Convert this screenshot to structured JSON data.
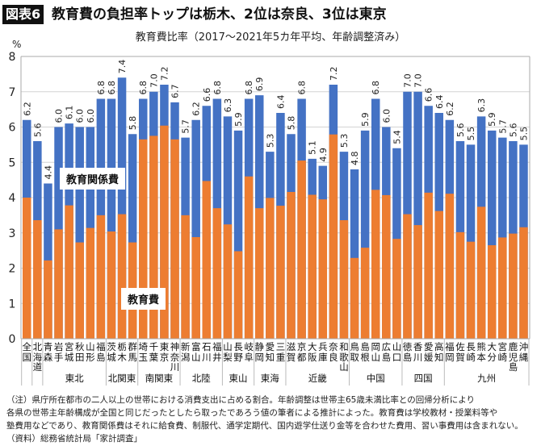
{
  "header": {
    "badge": "図表6",
    "title": "教育費の負担率トップは栃木、2位は奈良、3位は東京",
    "subtitle": "教育費比率（2017～2021年5カ年平均、年齢調整済み）",
    "unit": "%"
  },
  "chart_data": {
    "type": "bar",
    "stacked": "overlay",
    "ylim": [
      0,
      8
    ],
    "yticks": [
      "0",
      "1",
      "2",
      "3",
      "4",
      "5",
      "6",
      "7",
      "8"
    ],
    "ylabel": "%",
    "grid": true,
    "categories": [
      "全国",
      "北海道",
      "青森",
      "岩手",
      "宮城",
      "秋田",
      "山形",
      "福島",
      "茨城",
      "栃木",
      "群馬",
      "埼玉",
      "千葉",
      "東京",
      "神奈川",
      "新潟",
      "富山",
      "石川",
      "福井",
      "山梨",
      "長野",
      "岐阜",
      "静岡",
      "愛知",
      "三重",
      "滋賀",
      "京都",
      "大阪",
      "兵庫",
      "奈良",
      "和歌山",
      "鳥取",
      "島根",
      "岡山",
      "広島",
      "山口",
      "徳島",
      "香川",
      "愛媛",
      "高知",
      "福岡",
      "佐賀",
      "長崎",
      "熊本",
      "大分",
      "宮崎",
      "鹿児島",
      "沖縄"
    ],
    "regions": [
      {
        "label": "",
        "start": 0,
        "count": 1
      },
      {
        "label": "",
        "start": 1,
        "count": 1
      },
      {
        "label": "東北",
        "start": 2,
        "count": 6
      },
      {
        "label": "北関東",
        "start": 8,
        "count": 3
      },
      {
        "label": "南関東",
        "start": 11,
        "count": 4
      },
      {
        "label": "北陸",
        "start": 15,
        "count": 4
      },
      {
        "label": "東山",
        "start": 19,
        "count": 3
      },
      {
        "label": "東海",
        "start": 22,
        "count": 3
      },
      {
        "label": "近畿",
        "start": 25,
        "count": 6
      },
      {
        "label": "中国",
        "start": 31,
        "count": 5
      },
      {
        "label": "四国",
        "start": 36,
        "count": 4
      },
      {
        "label": "九州",
        "start": 40,
        "count": 8
      }
    ],
    "series": [
      {
        "name": "教育関係費",
        "color": "#4472C4",
        "values": [
          6.2,
          5.6,
          4.4,
          6.0,
          6.1,
          6.0,
          6.0,
          6.8,
          6.8,
          7.4,
          5.8,
          6.8,
          7.0,
          7.2,
          6.7,
          5.7,
          6.2,
          6.6,
          6.8,
          6.3,
          5.9,
          6.8,
          6.9,
          5.3,
          6.4,
          5.8,
          6.8,
          5.1,
          4.9,
          7.2,
          5.3,
          4.8,
          5.9,
          6.8,
          6.0,
          5.4,
          7.0,
          7.0,
          6.6,
          6.4,
          6.2,
          5.6,
          5.5,
          6.3,
          5.9,
          5.7,
          5.6,
          5.5
        ],
        "labels": [
          "6.2",
          "5.6",
          "4.4",
          "6.0",
          "6.1",
          "6.0",
          "6.0",
          "6.8",
          "6.8",
          "7.4",
          "5.8",
          "6.8",
          "7.0",
          "7.2",
          "6.7",
          "5.7",
          "6.2",
          "6.6",
          "6.8",
          "6.3",
          "5.9",
          "6.8",
          "6.9",
          "5.3",
          "6.4",
          "5.8",
          "6.8",
          "5.1",
          "4.9",
          "7.2",
          "5.3",
          "4.8",
          "5.9",
          "6.8",
          "6.0",
          "5.4",
          "7.0",
          "7.0",
          "6.6",
          "6.4",
          "6.2",
          "5.6",
          "5.5",
          "6.3",
          "5.9",
          "5.7",
          "5.6",
          "5.5"
        ]
      },
      {
        "name": "教育費",
        "color": "#ED7D31",
        "values": [
          4.0,
          3.36,
          2.22,
          3.1,
          3.78,
          2.73,
          3.14,
          3.5,
          3.04,
          3.53,
          2.73,
          5.65,
          5.75,
          6.04,
          5.65,
          3.5,
          2.88,
          4.47,
          3.7,
          3.24,
          2.48,
          4.6,
          3.7,
          3.99,
          3.77,
          4.16,
          5.05,
          4.08,
          3.95,
          5.79,
          3.36,
          2.29,
          2.58,
          4.22,
          4.07,
          2.83,
          3.53,
          3.22,
          4.14,
          3.62,
          4.11,
          3.02,
          2.75,
          3.74,
          2.65,
          2.87,
          2.98,
          3.16
        ]
      }
    ]
  },
  "notes": [
    "（注）県庁所在都市の二人以上の世帯における消費支出に占める割合。年齢調整は世帯主65歳未満比率との回帰分析により",
    "各県の世帯主年齢構成が全国と同じだったとしたら取ったであろう値の筆者による推計によった。教育費は学校教材・授業料等や",
    "塾費用などであり、教育関係費はそれに給食費、制服代、通学定期代、国内遊学仕送り金等を合わせた費用、習い事費用は含まれない。",
    "（資料）総務省統計局「家計調査」"
  ]
}
